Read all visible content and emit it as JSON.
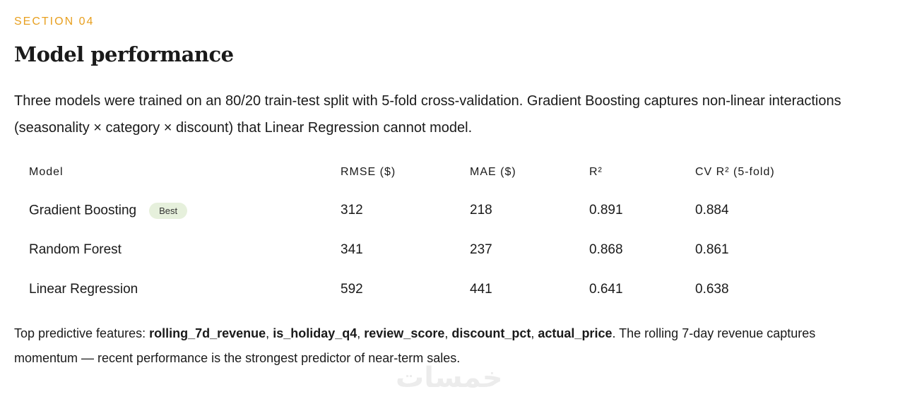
{
  "section_label": "SECTION 04",
  "title": "Model performance",
  "intro": "Three models were trained on an 80/20 train-test split with 5-fold cross-validation. Gradient Boosting captures non-linear interactions (seasonality × category × discount) that Linear Regression cannot model.",
  "table": {
    "headers": [
      "Model",
      "RMSE ($)",
      "MAE ($)",
      "R²",
      "CV R² (5-fold)"
    ],
    "rows": [
      [
        "Gradient Boosting",
        "312",
        "218",
        "0.891",
        "0.884"
      ],
      [
        "Random Forest",
        "341",
        "237",
        "0.868",
        "0.861"
      ],
      [
        "Linear Regression",
        "592",
        "441",
        "0.641",
        "0.638"
      ]
    ],
    "badge": {
      "row": 0,
      "text": "Best"
    }
  },
  "note": [
    {
      "text": "Top predictive features: ",
      "bold": false
    },
    {
      "text": "rolling_7d_revenue",
      "bold": true
    },
    {
      "text": ", ",
      "bold": false
    },
    {
      "text": "is_holiday_q4",
      "bold": true
    },
    {
      "text": ", ",
      "bold": false
    },
    {
      "text": "review_score",
      "bold": true
    },
    {
      "text": ", ",
      "bold": false
    },
    {
      "text": "discount_pct",
      "bold": true
    },
    {
      "text": ", ",
      "bold": false
    },
    {
      "text": "actual_price",
      "bold": true
    },
    {
      "text": ". The rolling 7-day revenue captures momentum — recent performance is the strongest predictor of near-term sales.",
      "bold": false
    }
  ],
  "watermark": "خمسات"
}
